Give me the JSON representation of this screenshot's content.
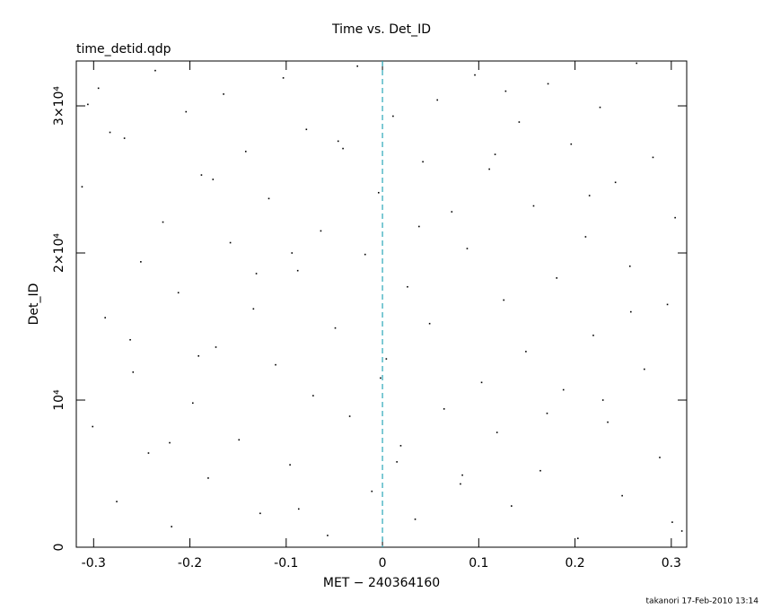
{
  "chart_data": {
    "type": "scatter",
    "title": "Time vs. Det_ID",
    "subtitle": "time_detid.qdp",
    "x_label": "MET − 240364160",
    "y_label": "Det_ID",
    "footer": "takanori 17-Feb-2010 13:14",
    "xlim": [
      -0.318,
      0.316
    ],
    "ylim": [
      0,
      33050
    ],
    "xticks": [
      -0.3,
      -0.2,
      -0.1,
      0,
      0.1,
      0.2,
      0.3
    ],
    "yticks": [
      0,
      {
        "value": 10000,
        "label": "10⁴"
      },
      {
        "value": 20000,
        "label": "2×10⁴"
      },
      {
        "value": 30000,
        "label": "3×10⁴"
      }
    ],
    "vline": 0,
    "vline_color": "#2aa7b8",
    "color": "#000000",
    "x": [
      -0.312,
      -0.301,
      -0.295,
      -0.288,
      -0.276,
      -0.268,
      -0.259,
      -0.251,
      -0.243,
      -0.236,
      -0.228,
      -0.219,
      -0.212,
      -0.204,
      -0.197,
      -0.188,
      -0.181,
      -0.173,
      -0.165,
      -0.158,
      -0.149,
      -0.142,
      -0.134,
      -0.127,
      -0.118,
      -0.111,
      -0.103,
      -0.096,
      -0.088,
      -0.079,
      -0.072,
      -0.064,
      -0.057,
      -0.049,
      -0.041,
      -0.034,
      -0.026,
      -0.018,
      -0.011,
      -0.004,
      0.004,
      0.011,
      0.019,
      0.026,
      0.034,
      0.042,
      0.049,
      0.057,
      0.064,
      0.072,
      0.081,
      0.088,
      0.096,
      0.103,
      0.111,
      0.119,
      0.126,
      0.134,
      0.142,
      0.149,
      0.157,
      0.164,
      0.172,
      0.181,
      0.188,
      0.196,
      0.203,
      0.211,
      0.219,
      0.226,
      0.234,
      0.242,
      0.249,
      0.257,
      0.264,
      0.272,
      0.281,
      0.288,
      0.296,
      0.304,
      0.311,
      -0.306,
      -0.262,
      -0.221,
      -0.176,
      -0.131,
      -0.087,
      -0.046,
      -0.002,
      0.038,
      0.083,
      0.128,
      0.171,
      0.215,
      0.258,
      0.301,
      -0.283,
      -0.191,
      -0.094,
      0.015,
      0.117,
      0.229
    ],
    "y": [
      24500,
      8200,
      31200,
      15600,
      3100,
      27800,
      11900,
      19400,
      6400,
      32400,
      22100,
      1400,
      17300,
      29600,
      9800,
      25300,
      4700,
      13600,
      30800,
      20700,
      7300,
      26900,
      16200,
      2300,
      23700,
      12400,
      31900,
      5600,
      18800,
      28400,
      10300,
      21500,
      800,
      14900,
      27100,
      8900,
      32700,
      19900,
      3800,
      24100,
      12800,
      29300,
      6900,
      17700,
      1900,
      26200,
      15200,
      30400,
      9400,
      22800,
      4300,
      20300,
      32100,
      11200,
      25700,
      7800,
      16800,
      2800,
      28900,
      13300,
      23200,
      5200,
      31500,
      18300,
      10700,
      27400,
      600,
      21100,
      14400,
      29900,
      8500,
      24800,
      3500,
      19100,
      32900,
      12100,
      26500,
      6100,
      16500,
      22400,
      1100,
      30100,
      14100,
      7100,
      25000,
      18600,
      2600,
      27600,
      11500,
      21800,
      4900,
      31000,
      9100,
      23900,
      16000,
      1700,
      28200,
      13000,
      20000,
      5800,
      26700,
      10000
    ]
  }
}
